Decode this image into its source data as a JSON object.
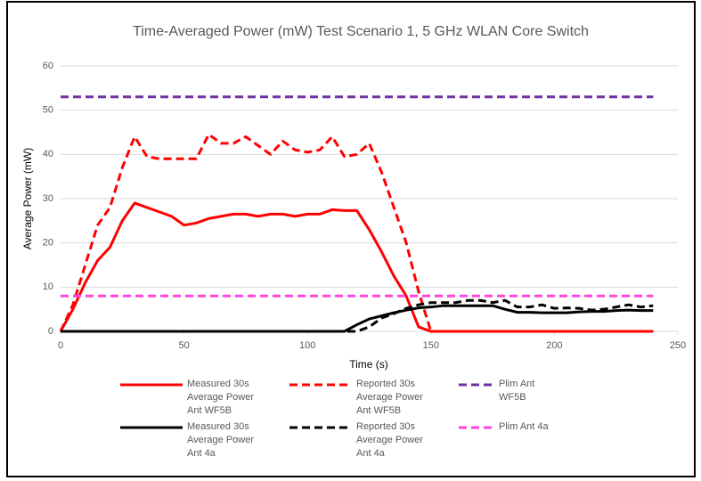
{
  "chart_data": {
    "type": "line",
    "title": "Time-Averaged Power (mW) Test Scenario 1, 5 GHz WLAN Core Switch",
    "x_label": "Time (s)",
    "y_label": "Average Power (mW)",
    "xlim": [
      0,
      250
    ],
    "xticks": [
      0,
      50,
      100,
      150,
      200,
      250
    ],
    "ylim": [
      0,
      60
    ],
    "yticks": [
      0,
      10,
      20,
      30,
      40,
      50,
      60
    ],
    "grid": true,
    "x": [
      0,
      5,
      10,
      15,
      20,
      25,
      30,
      35,
      40,
      45,
      50,
      55,
      60,
      65,
      70,
      75,
      80,
      85,
      90,
      95,
      100,
      105,
      110,
      115,
      120,
      125,
      130,
      135,
      140,
      145,
      150,
      155,
      160,
      165,
      170,
      175,
      180,
      185,
      190,
      195,
      200,
      205,
      210,
      215,
      220,
      225,
      230,
      235,
      240
    ],
    "series": [
      {
        "name": "Measured 30s Average Power Ant WF5B",
        "color": "#ff0000",
        "style": "solid",
        "values": [
          0,
          5,
          11,
          16,
          19,
          25,
          29,
          28,
          27,
          26,
          24,
          24.5,
          25.5,
          26,
          26.5,
          26.5,
          26,
          26.5,
          26.5,
          26,
          26.5,
          26.5,
          27.5,
          27.3,
          27.3,
          23,
          18,
          12.5,
          8,
          1,
          0,
          0,
          0,
          0,
          0,
          0,
          0,
          0,
          0,
          0,
          0,
          0,
          0,
          0,
          0,
          0,
          0,
          0,
          0
        ]
      },
      {
        "name": "Reported 30s Average Power Ant WF5B",
        "color": "#ff0000",
        "style": "dashed",
        "values": [
          0,
          6,
          15,
          24,
          28,
          37,
          44,
          39.5,
          39,
          39,
          39,
          39,
          44.5,
          42.5,
          42.5,
          44,
          42,
          40,
          43,
          41,
          40.5,
          41,
          44,
          39.5,
          40,
          42.5,
          36,
          28,
          20,
          9,
          0,
          0,
          0,
          0,
          0,
          0,
          0,
          0,
          0,
          0,
          0,
          0,
          0,
          0,
          0,
          0,
          0,
          0,
          0
        ]
      },
      {
        "name": "Plim Ant WF5B",
        "color": "#7030a0",
        "style": "dashed",
        "values": [
          53,
          53,
          53,
          53,
          53,
          53,
          53,
          53,
          53,
          53,
          53,
          53,
          53,
          53,
          53,
          53,
          53,
          53,
          53,
          53,
          53,
          53,
          53,
          53,
          53,
          53,
          53,
          53,
          53,
          53,
          53,
          53,
          53,
          53,
          53,
          53,
          53,
          53,
          53,
          53,
          53,
          53,
          53,
          53,
          53,
          53,
          53,
          53,
          53
        ]
      },
      {
        "name": "Measured 30s Average Power Ant 4a",
        "color": "#000000",
        "style": "solid",
        "values": [
          0,
          0,
          0,
          0,
          0,
          0,
          0,
          0,
          0,
          0,
          0,
          0,
          0,
          0,
          0,
          0,
          0,
          0,
          0,
          0,
          0,
          0,
          0,
          0,
          1.5,
          2.8,
          3.5,
          4.2,
          4.8,
          5.3,
          5.5,
          5.8,
          5.8,
          5.8,
          5.8,
          5.8,
          5,
          4.3,
          4.3,
          4.2,
          4.2,
          4.2,
          4.4,
          4.5,
          4.5,
          4.7,
          4.8,
          4.7,
          4.7
        ]
      },
      {
        "name": "Reported 30s Average Power Ant 4a",
        "color": "#000000",
        "style": "dashed",
        "values": [
          0,
          0,
          0,
          0,
          0,
          0,
          0,
          0,
          0,
          0,
          0,
          0,
          0,
          0,
          0,
          0,
          0,
          0,
          0,
          0,
          0,
          0,
          0,
          0,
          0,
          1,
          3,
          4,
          5.2,
          6,
          6.5,
          6.5,
          6.5,
          7,
          7,
          6.5,
          7,
          5.5,
          5.5,
          6,
          5.2,
          5.3,
          5.2,
          4.8,
          5,
          5.5,
          6,
          5.5,
          5.8
        ]
      },
      {
        "name": "Plim Ant 4a",
        "color": "#ff44dd",
        "style": "dashed",
        "values": [
          8,
          8,
          8,
          8,
          8,
          8,
          8,
          8,
          8,
          8,
          8,
          8,
          8,
          8,
          8,
          8,
          8,
          8,
          8,
          8,
          8,
          8,
          8,
          8,
          8,
          8,
          8,
          8,
          8,
          8,
          8,
          8,
          8,
          8,
          8,
          8,
          8,
          8,
          8,
          8,
          8,
          8,
          8,
          8,
          8,
          8,
          8,
          8,
          8
        ]
      }
    ]
  }
}
